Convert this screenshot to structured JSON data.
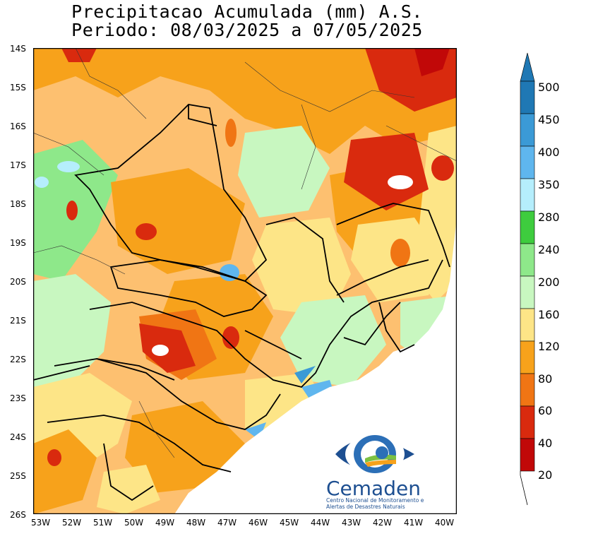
{
  "title": {
    "line1": "Precipitacao Acumulada (mm) A.S.",
    "line2": "Periodo: 08/03/2025 a 07/05/2025"
  },
  "axes": {
    "lat_labels": [
      "14S",
      "15S",
      "16S",
      "17S",
      "18S",
      "19S",
      "20S",
      "21S",
      "22S",
      "23S",
      "24S",
      "25S",
      "26S"
    ],
    "lon_labels": [
      "53W",
      "52W",
      "51W",
      "50W",
      "49W",
      "48W",
      "47W",
      "46W",
      "45W",
      "44W",
      "43W",
      "42W",
      "41W",
      "40W"
    ]
  },
  "legend": {
    "labels": [
      "500",
      "450",
      "400",
      "350",
      "280",
      "240",
      "200",
      "160",
      "120",
      "80",
      "60",
      "40",
      "20"
    ],
    "colors": [
      "#1f78b4",
      "#3b9ad6",
      "#5fb6ee",
      "#b5eefc",
      "#3ecc3e",
      "#8ee88a",
      "#c8f7c0",
      "#fde587",
      "#f7a21b",
      "#f07514",
      "#d92a0e",
      "#c10808"
    ]
  },
  "logo": {
    "name": "Cemaden",
    "subtitle": "Centro Nacional de Monitoramento e Alertas de Desastres Naturais"
  },
  "map_colors": {
    "orange": "#f7a21b",
    "light_orange": "#fdc070",
    "yellow": "#fde587",
    "light_green": "#c8f7c0",
    "green": "#8ee88a",
    "red": "#d92a0e",
    "dark_red": "#c10808",
    "blue": "#5fb6ee"
  }
}
